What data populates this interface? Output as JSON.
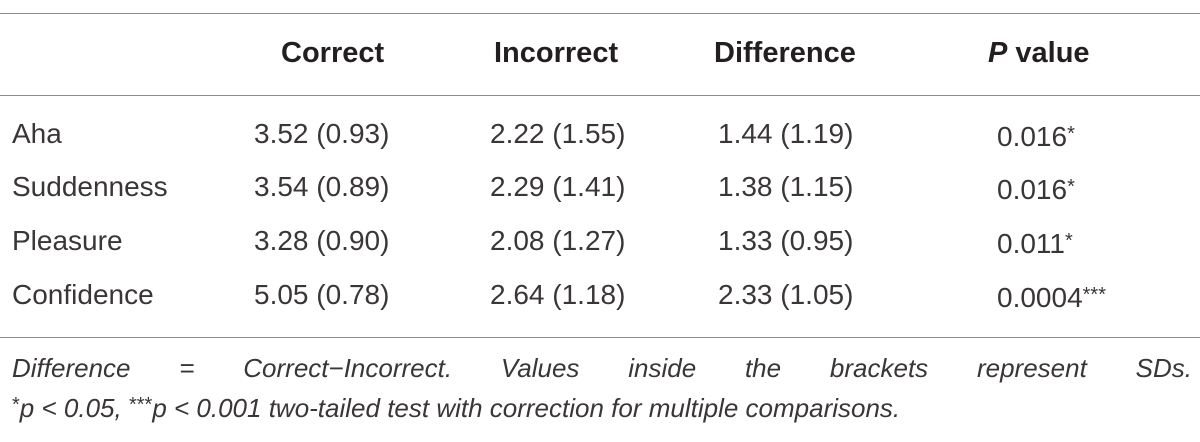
{
  "table": {
    "header": {
      "col0": "",
      "col1": "Correct",
      "col2": "Incorrect",
      "col3": "Difference",
      "col4_italic": "P",
      "col4_rest": " value"
    },
    "rows": [
      {
        "label": "Aha",
        "correct": "3.52 (0.93)",
        "incorrect": "2.22 (1.55)",
        "difference": "1.44 (1.19)",
        "p": "0.016",
        "stars": "*"
      },
      {
        "label": "Suddenness",
        "correct": "3.54 (0.89)",
        "incorrect": "2.29 (1.41)",
        "difference": "1.38 (1.15)",
        "p": "0.016",
        "stars": "*"
      },
      {
        "label": "Pleasure",
        "correct": "3.28 (0.90)",
        "incorrect": "2.08 (1.27)",
        "difference": "1.33 (0.95)",
        "p": "0.011",
        "stars": "*"
      },
      {
        "label": "Confidence",
        "correct": "5.05 (0.78)",
        "incorrect": "2.64 (1.18)",
        "difference": "2.33 (1.05)",
        "p": "0.0004",
        "stars": "***"
      }
    ]
  },
  "footnote": {
    "line1_words": [
      "Difference",
      "=",
      "Correct−Incorrect.",
      "Values",
      "inside",
      "the",
      "brackets",
      "represent",
      "SDs."
    ],
    "line2_star1": "*",
    "line2_part1": "p < 0.05, ",
    "line2_star2": "***",
    "line2_part2": "p < 0.001 two-tailed test with correction for multiple comparisons."
  }
}
